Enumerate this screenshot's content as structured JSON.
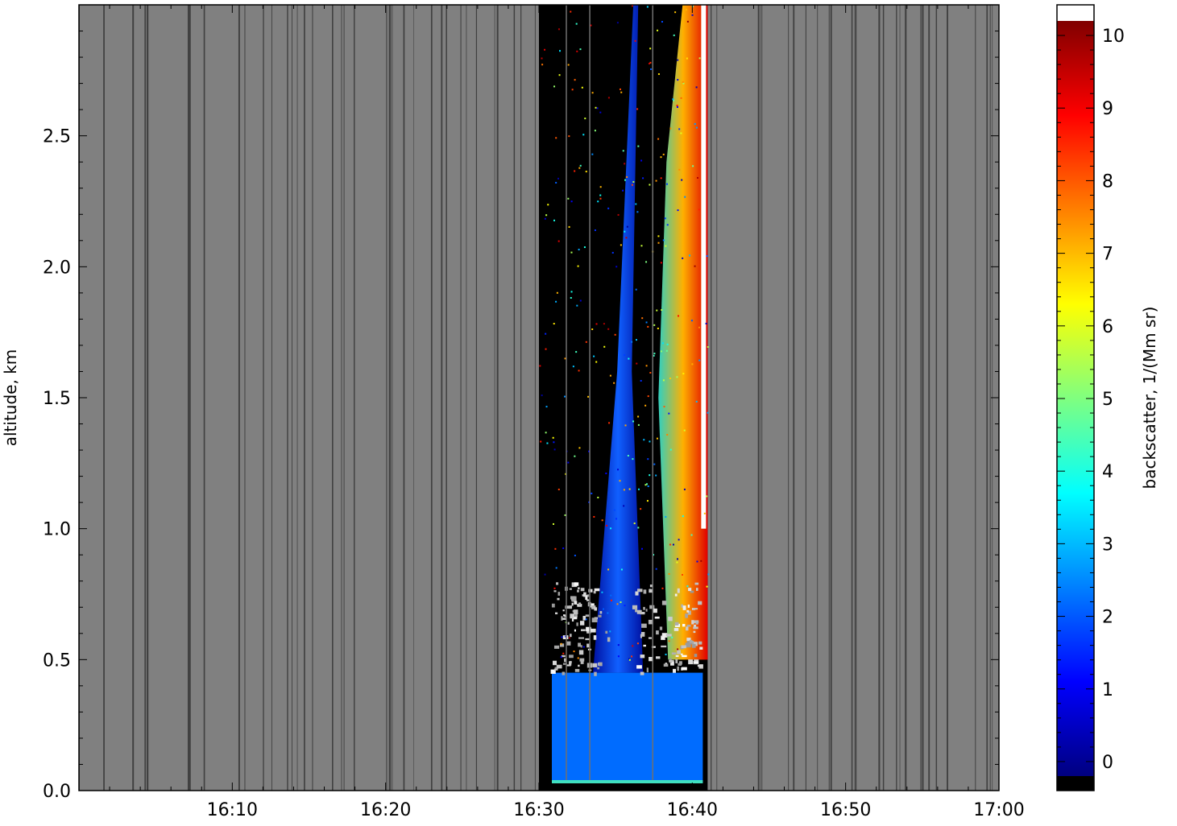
{
  "chart_data": {
    "type": "heatmap",
    "title": "",
    "xlabel": "",
    "ylabel": "altitude, km",
    "colorbar_label": "backscatter, 1/(Mm sr)",
    "x_ticks": [
      "16:10",
      "16:20",
      "16:30",
      "16:40",
      "16:50",
      "17:00"
    ],
    "x_range": [
      "16:00",
      "17:00"
    ],
    "y_ticks": [
      "0.0",
      "0.5",
      "1.0",
      "1.5",
      "2.0",
      "2.5"
    ],
    "y_range": [
      0.0,
      3.0
    ],
    "colorbar_ticks": [
      "0",
      "1",
      "2",
      "3",
      "4",
      "5",
      "6",
      "7",
      "8",
      "9",
      "10"
    ],
    "colorbar_range": [
      -0.2,
      10.2
    ],
    "colormap": "jet",
    "colors": {
      "no_data": "#808080",
      "under": "#000000",
      "over": "#ffffff",
      "missing_profile_line": "#404040"
    },
    "data_interval": [
      "16:30",
      "16:41"
    ],
    "features": [
      {
        "name": "near-surface layer",
        "altitude_km": [
          0.03,
          0.45
        ],
        "backscatter": 2.2
      },
      {
        "name": "cloud base patches",
        "altitude_km": [
          0.45,
          0.9
        ],
        "backscatter": 10
      },
      {
        "name": "rising plume",
        "time_range": [
          "16:33",
          "16:37"
        ],
        "altitude_km": [
          0.45,
          3.0
        ],
        "backscatter": 2.0
      },
      {
        "name": "dense aerosol layer",
        "time_range": [
          "16:38",
          "16:41"
        ],
        "altitude_km": [
          0.5,
          3.0
        ],
        "backscatter": 7.5
      }
    ]
  }
}
